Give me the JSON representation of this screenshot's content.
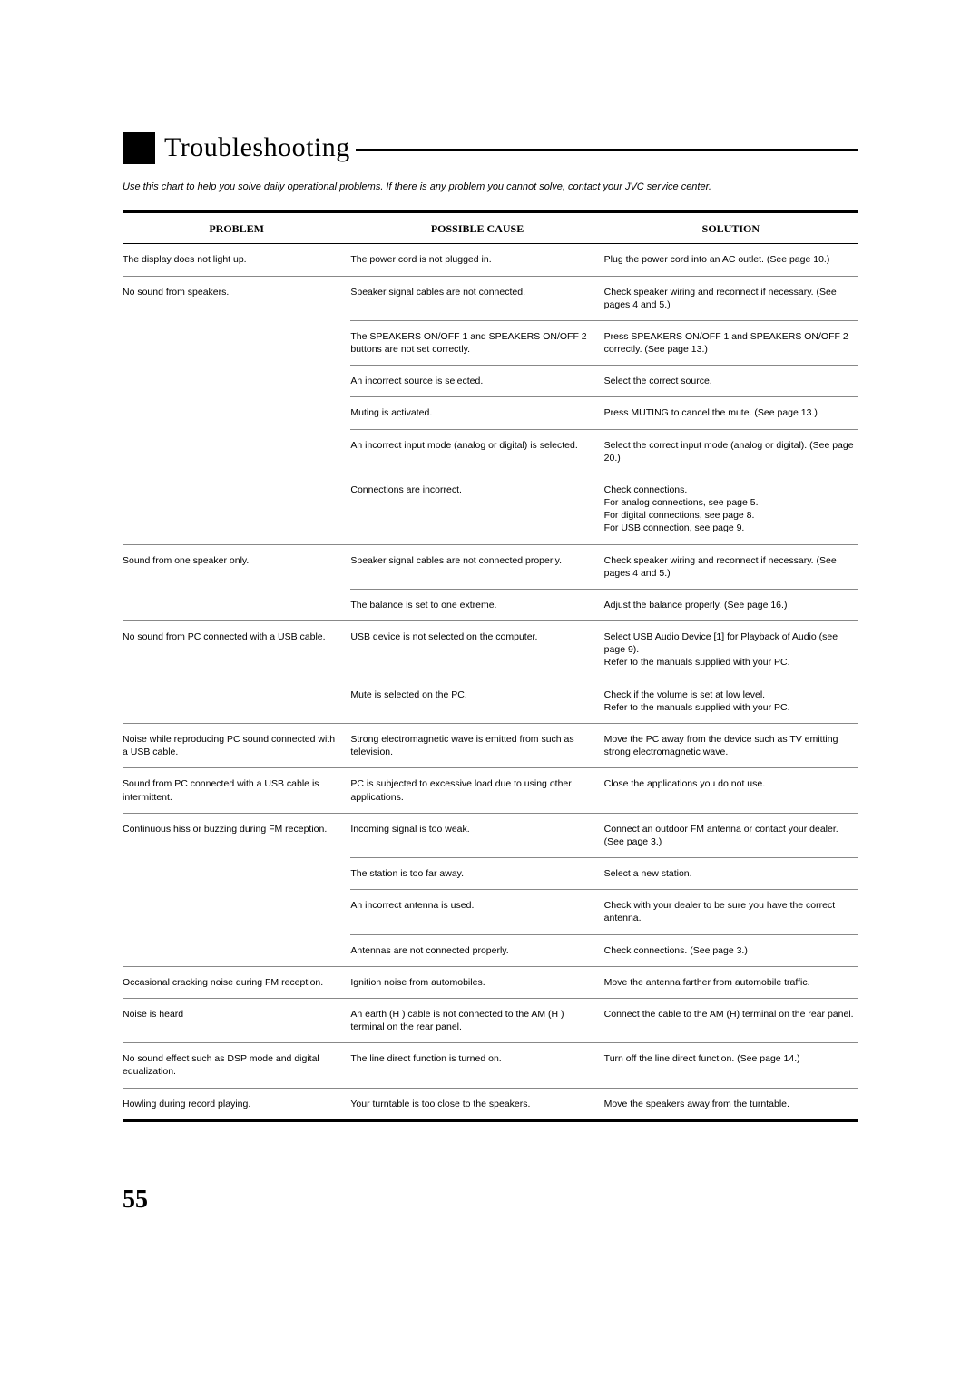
{
  "header": {
    "title": "Troubleshooting"
  },
  "intro": "Use this chart to help you solve daily operational problems. If there is any problem you cannot solve, contact your JVC service center.",
  "table": {
    "headers": {
      "problem": "PROBLEM",
      "cause": "POSSIBLE CAUSE",
      "solution": "SOLUTION"
    },
    "rows": [
      {
        "problem": "The display does not light up.",
        "cause": "The power cord is not plugged in.",
        "solution": "Plug the power cord into an AC outlet. (See page 10.)"
      },
      {
        "problem": "No sound from speakers.",
        "cause": "Speaker signal cables are not connected.",
        "solution": "Check speaker wiring and reconnect if necessary. (See pages 4 and 5.)"
      },
      {
        "problem": "",
        "cause": "The SPEAKERS ON/OFF 1 and SPEAKERS ON/OFF 2 buttons are not set correctly.",
        "solution": "Press SPEAKERS ON/OFF 1 and SPEAKERS ON/OFF 2 correctly. (See page 13.)"
      },
      {
        "problem": "",
        "cause": "An incorrect source is selected.",
        "solution": "Select the correct source."
      },
      {
        "problem": "",
        "cause": "Muting is activated.",
        "solution": "Press MUTING to cancel the mute. (See page 13.)"
      },
      {
        "problem": "",
        "cause": "An incorrect input mode (analog or digital) is selected.",
        "solution": "Select the correct input mode (analog or digital).  (See page 20.)"
      },
      {
        "problem": "",
        "cause": "Connections are incorrect.",
        "solution": "Check connections.\nFor analog connections, see page 5.\nFor digital connections, see page 8.\nFor USB connection, see page 9."
      },
      {
        "problem": "Sound from one speaker only.",
        "cause": "Speaker signal cables are not connected properly.",
        "solution": "Check speaker wiring and reconnect if necessary. (See pages 4 and 5.)"
      },
      {
        "problem": "",
        "cause": "The balance is set to one extreme.",
        "solution": "Adjust the balance properly. (See page 16.)"
      },
      {
        "problem": "No sound from PC connected with a USB cable.",
        "cause": "USB device is not selected on the computer.",
        "solution": "Select  USB Audio Device [1]  for  Playback  of  Audio  (see page 9).\nRefer to the manuals supplied with your PC."
      },
      {
        "problem": "",
        "cause": " Mute  is selected on the PC.",
        "solution": "Check if the volume is set at low level.\nRefer to the manuals supplied with your PC."
      },
      {
        "problem": "Noise while reproducing PC sound connected with a USB cable.",
        "cause": "Strong electromagnetic wave is emitted from such as television.",
        "solution": "Move the PC away from the device such as TV emitting strong electromagnetic wave."
      },
      {
        "problem": "Sound from PC connected with a USB cable is intermittent.",
        "cause": "PC is subjected to excessive load due to using other applications.",
        "solution": "Close the applications you do not use."
      },
      {
        "problem": "Continuous hiss or buzzing during FM reception.",
        "cause": "Incoming signal is too weak.",
        "solution": "Connect an outdoor FM antenna or contact your dealer. (See page 3.)"
      },
      {
        "problem": "",
        "cause": "The station is too far away.",
        "solution": "Select a new station."
      },
      {
        "problem": "",
        "cause": "An incorrect antenna is used.",
        "solution": "Check with your dealer to be sure you have the correct antenna."
      },
      {
        "problem": "",
        "cause": "Antennas are not connected properly.",
        "solution": "Check connections. (See page 3.)"
      },
      {
        "problem": "Occasional cracking noise during FM reception.",
        "cause": "Ignition noise from automobiles.",
        "solution": "Move the antenna farther from automobile traffic."
      },
      {
        "problem": "Noise is heard",
        "cause": "An earth (H ) cable is not connected to the AM (H ) terminal on the rear panel.",
        "solution": "Connect the cable to the AM (H) terminal on the rear panel."
      },
      {
        "problem": "No sound effect such as DSP mode and digital equalization.",
        "cause": "The line direct function is turned on.",
        "solution": "Turn off the line direct function. (See page 14.)"
      },
      {
        "problem": "Howling during record playing.",
        "cause": "Your turntable is too close to the speakers.",
        "solution": "Move the speakers away from the turntable."
      }
    ]
  },
  "page_number": "55"
}
